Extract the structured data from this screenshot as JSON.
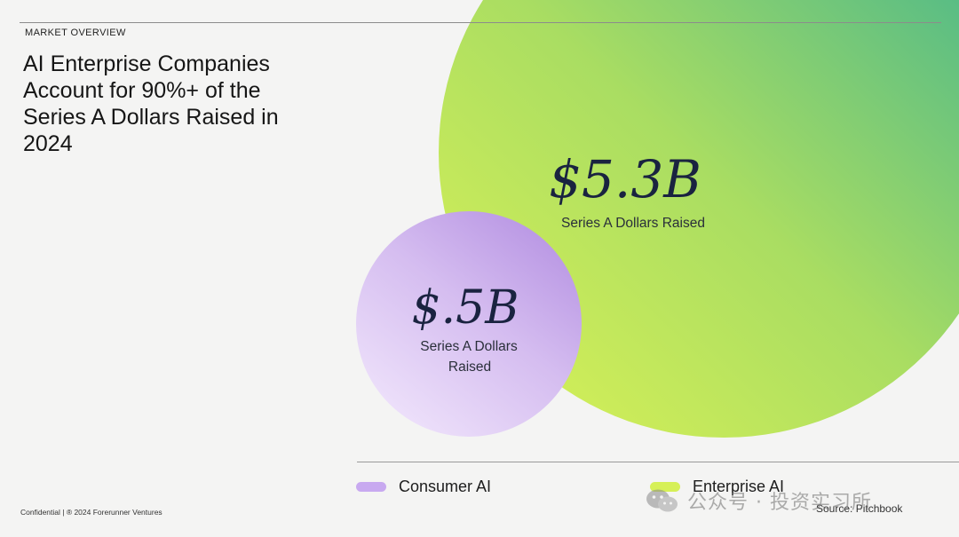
{
  "header": {
    "eyebrow": "MARKET OVERVIEW",
    "title": "AI Enterprise Companies Account for 90%+ of the Series A Dollars Raised in 2024"
  },
  "chart_data": {
    "type": "bubble",
    "unit": "$B",
    "series": [
      {
        "name": "Enterprise AI",
        "value": 5.3,
        "label": "$5.3B",
        "sublabel": [
          "Series A Dollars Raised"
        ],
        "colors": [
          "#d6f057",
          "#a9dd62",
          "#41b38f"
        ]
      },
      {
        "name": "Consumer AI",
        "value": 0.5,
        "label": "$.5B",
        "sublabel": [
          "Series A Dollars",
          "Raised"
        ],
        "colors": [
          "#efe3fb",
          "#d5bdf0",
          "#b794e3"
        ]
      }
    ]
  },
  "legend": {
    "items": [
      {
        "label": "Consumer AI",
        "color": "#c8a9f0"
      },
      {
        "label": "Enterprise AI",
        "color": "#d6f057"
      }
    ]
  },
  "footer": {
    "confidential": "Confidential | ® 2024 Forerunner Ventures",
    "source": "Source: Pitchbook"
  },
  "watermark": {
    "icon": "wechat-icon",
    "text": "公众号 · 投资实习所"
  }
}
